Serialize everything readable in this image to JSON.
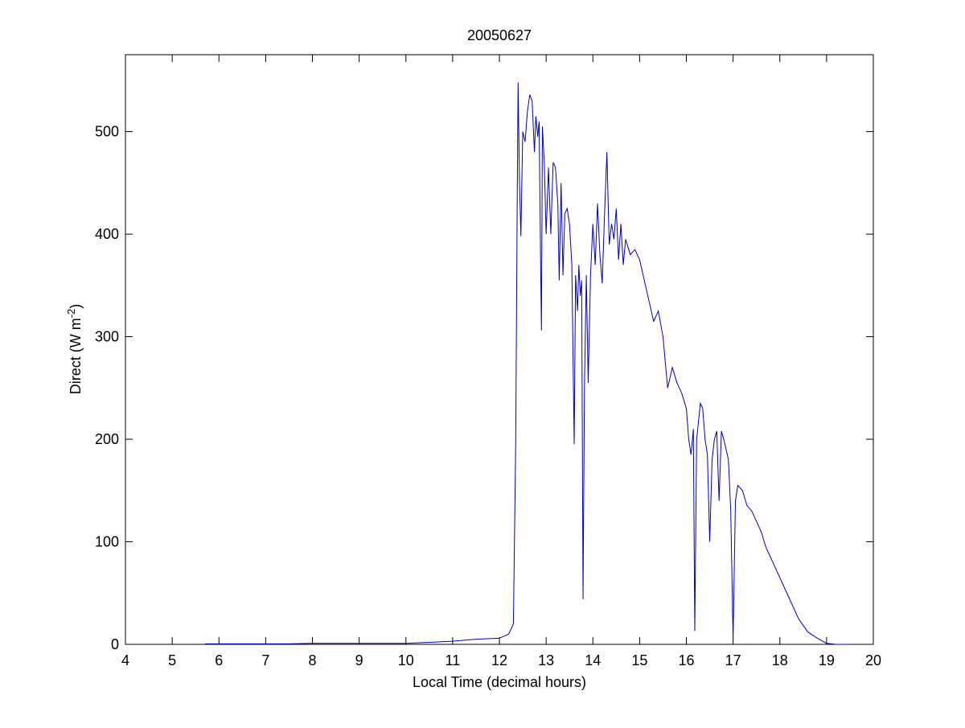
{
  "chart_data": {
    "type": "line",
    "title": "20050627",
    "xlabel": "Local Time (decimal hours)",
    "ylabel": {
      "text": "Direct (W m",
      "sup": "-2",
      "suffix": ")"
    },
    "xlim": [
      4,
      20
    ],
    "xticks": [
      4,
      5,
      6,
      7,
      8,
      9,
      10,
      11,
      12,
      13,
      14,
      15,
      16,
      17,
      18,
      19,
      20
    ],
    "ylim": [
      0,
      575
    ],
    "yticks": [
      0,
      100,
      200,
      300,
      400,
      500
    ],
    "series": [
      {
        "color": "#0000c0",
        "x": [
          5.7,
          6.5,
          7.5,
          8,
          9,
          10,
          10.5,
          11,
          11.5,
          12,
          12.1,
          12.2,
          12.3,
          12.35,
          12.38,
          12.4,
          12.43,
          12.46,
          12.5,
          12.55,
          12.6,
          12.65,
          12.7,
          12.75,
          12.78,
          12.82,
          12.85,
          12.88,
          12.9,
          12.92,
          12.96,
          13.0,
          13.05,
          13.1,
          13.15,
          13.2,
          13.25,
          13.28,
          13.32,
          13.36,
          13.4,
          13.45,
          13.5,
          13.55,
          13.6,
          13.63,
          13.67,
          13.7,
          13.73,
          13.76,
          13.79,
          13.82,
          13.86,
          13.9,
          13.95,
          14.0,
          14.05,
          14.1,
          14.15,
          14.2,
          14.25,
          14.3,
          14.35,
          14.4,
          14.45,
          14.5,
          14.55,
          14.6,
          14.65,
          14.7,
          14.8,
          14.9,
          15.0,
          15.1,
          15.2,
          15.3,
          15.4,
          15.5,
          15.6,
          15.7,
          15.8,
          15.9,
          16.0,
          16.05,
          16.1,
          16.15,
          16.18,
          16.22,
          16.3,
          16.35,
          16.4,
          16.45,
          16.5,
          16.55,
          16.6,
          16.65,
          16.7,
          16.75,
          16.8,
          16.85,
          16.9,
          16.95,
          17.0,
          17.05,
          17.1,
          17.2,
          17.3,
          17.4,
          17.5,
          17.6,
          17.7,
          17.8,
          18.0,
          18.2,
          18.4,
          18.6,
          18.8,
          19.0,
          19.2,
          19.5
        ],
        "values": [
          0.5,
          0.5,
          0.5,
          1,
          1,
          1,
          2,
          3,
          5,
          6,
          8,
          10,
          20,
          200,
          420,
          548,
          450,
          398,
          500,
          490,
          520,
          536,
          530,
          480,
          515,
          495,
          510,
          380,
          306,
          505,
          470,
          400,
          465,
          400,
          470,
          465,
          430,
          355,
          450,
          360,
          420,
          425,
          410,
          370,
          195,
          360,
          325,
          370,
          340,
          355,
          44,
          250,
          360,
          255,
          360,
          410,
          370,
          430,
          380,
          352,
          420,
          480,
          390,
          410,
          395,
          425,
          375,
          410,
          370,
          395,
          380,
          385,
          375,
          355,
          335,
          315,
          325,
          300,
          250,
          270,
          255,
          245,
          230,
          200,
          185,
          210,
          13,
          200,
          235,
          230,
          200,
          185,
          100,
          180,
          200,
          208,
          140,
          208,
          200,
          190,
          180,
          130,
          5,
          140,
          155,
          150,
          135,
          130,
          120,
          110,
          95,
          85,
          65,
          45,
          25,
          12,
          6,
          1,
          0,
          0
        ]
      }
    ]
  }
}
